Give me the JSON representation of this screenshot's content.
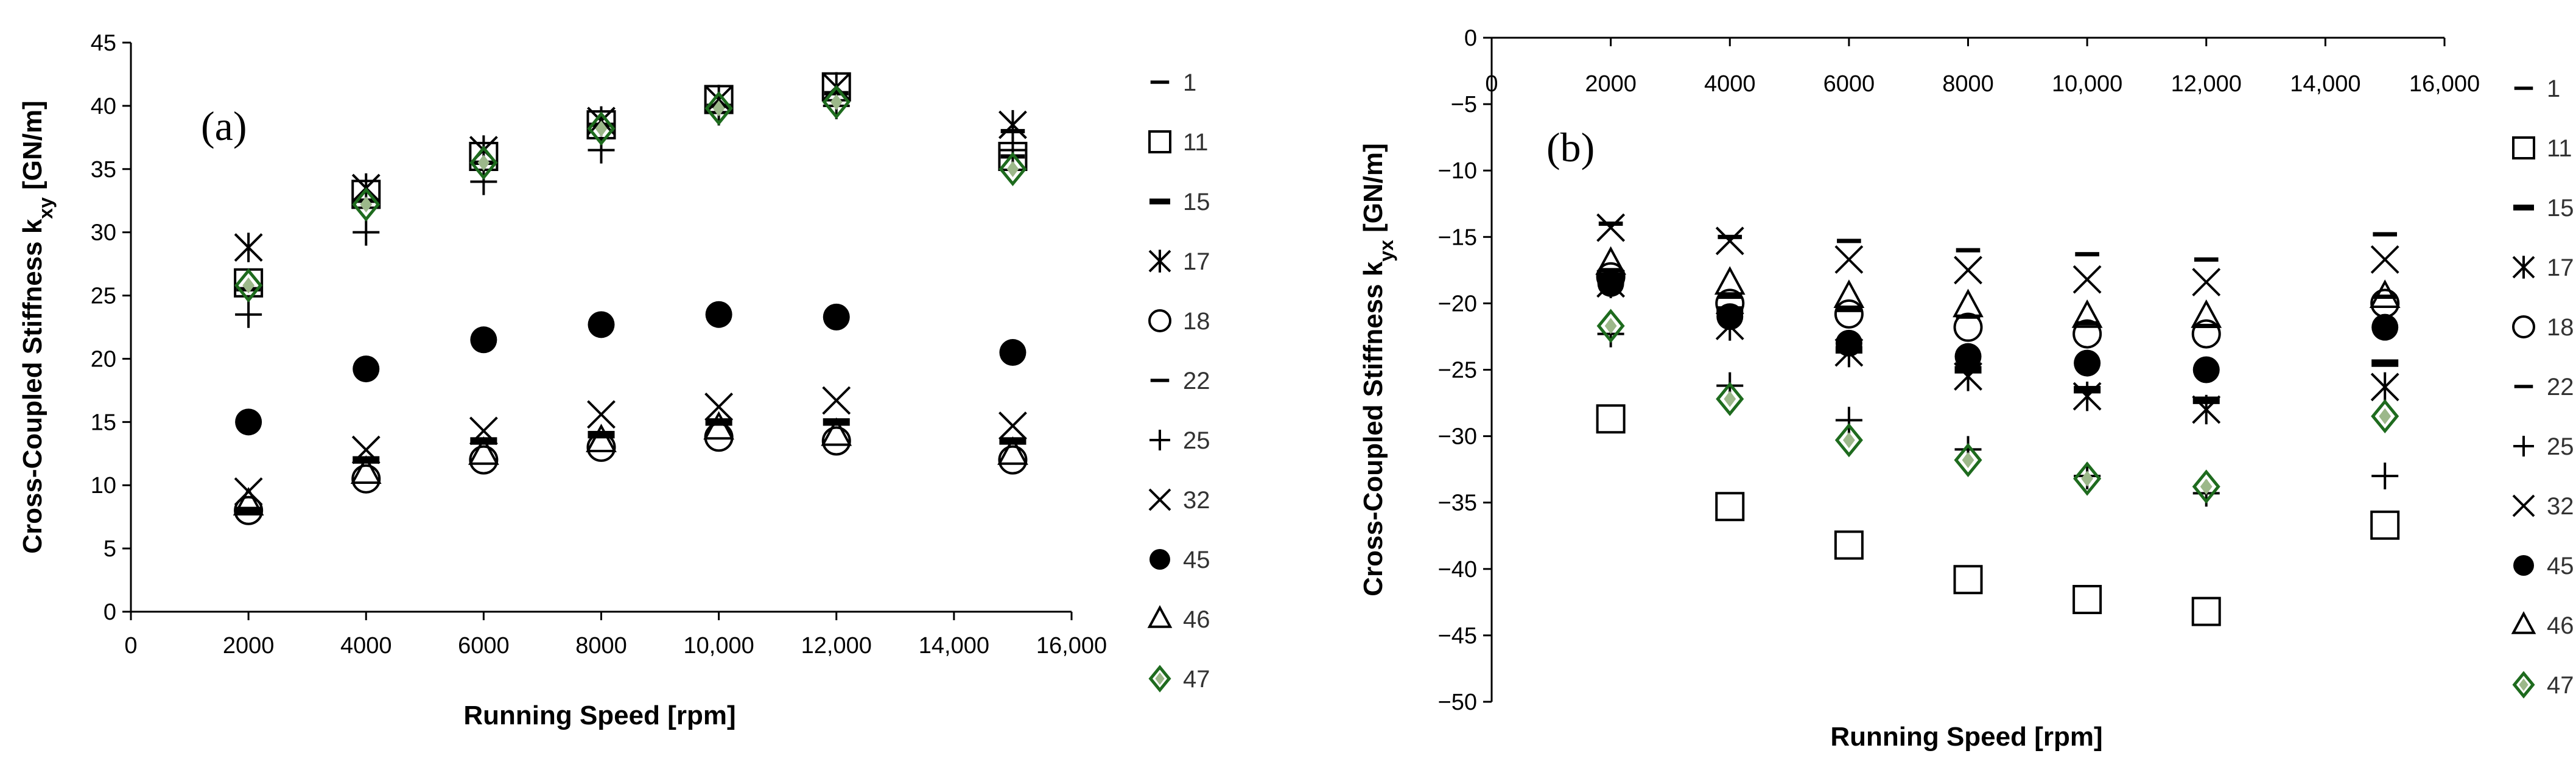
{
  "colors": {
    "axis": "#000000",
    "marker": "#000000",
    "accent_series_47": "#1e6b1e"
  },
  "legend_entries": [
    "1",
    "11",
    "15",
    "17",
    "18",
    "22",
    "25",
    "32",
    "45",
    "46",
    "47"
  ],
  "chart_data": [
    {
      "type": "scatter",
      "panel_label": "(a)",
      "xlabel": "Running Speed [rpm]",
      "ylabel_main": "Cross-Coupled Stiffness k",
      "ylabel_sub": "xy",
      "ylabel_unit": " [GN/m]",
      "xlim": [
        0,
        16000
      ],
      "ylim": [
        0,
        45
      ],
      "xticks": [
        0,
        2000,
        4000,
        6000,
        8000,
        10000,
        12000,
        14000,
        16000
      ],
      "xtick_labels": [
        "0",
        "2000",
        "4000",
        "6000",
        "8000",
        "10,000",
        "12,000",
        "14,000",
        "16,000"
      ],
      "yticks": [
        0,
        5,
        10,
        15,
        20,
        25,
        30,
        35,
        40,
        45
      ],
      "ytick_labels": [
        "0",
        "5",
        "10",
        "15",
        "20",
        "25",
        "30",
        "35",
        "40",
        "45"
      ],
      "legend_position": "right",
      "x": [
        2000,
        4000,
        6000,
        8000,
        10000,
        12000,
        15000
      ],
      "series": [
        {
          "name": "1",
          "marker": "dash",
          "values": [
            25.5,
            32.5,
            35.5,
            38.5,
            40.0,
            41.0,
            36.0
          ]
        },
        {
          "name": "11",
          "marker": "square",
          "values": [
            26.0,
            33.0,
            36.0,
            38.5,
            40.5,
            41.5,
            36.0
          ]
        },
        {
          "name": "15",
          "marker": "bar",
          "values": [
            8.0,
            12.0,
            13.5,
            14.0,
            15.0,
            15.0,
            13.5
          ]
        },
        {
          "name": "17",
          "marker": "star",
          "values": [
            28.8,
            33.5,
            36.5,
            38.8,
            40.5,
            41.5,
            38.5
          ]
        },
        {
          "name": "18",
          "marker": "circle",
          "values": [
            8.0,
            10.5,
            12.0,
            13.0,
            13.8,
            13.5,
            12.0
          ]
        },
        {
          "name": "22",
          "marker": "dash",
          "values": [
            25.5,
            32.5,
            35.5,
            38.5,
            40.0,
            41.0,
            38.0
          ]
        },
        {
          "name": "25",
          "marker": "plus",
          "values": [
            23.5,
            30.0,
            34.0,
            36.5,
            39.5,
            40.0,
            36.5
          ]
        },
        {
          "name": "32",
          "marker": "x",
          "values": [
            9.5,
            12.8,
            14.3,
            15.6,
            16.2,
            16.7,
            14.7
          ]
        },
        {
          "name": "45",
          "marker": "dot",
          "values": [
            15.0,
            19.2,
            21.5,
            22.7,
            23.5,
            23.3,
            20.5
          ]
        },
        {
          "name": "46",
          "marker": "triangle",
          "values": [
            8.5,
            11.0,
            12.5,
            13.5,
            14.5,
            14.0,
            12.5
          ]
        },
        {
          "name": "47",
          "marker": "diamond",
          "values": [
            25.8,
            32.2,
            35.5,
            38.2,
            39.8,
            40.3,
            35.0
          ]
        }
      ]
    },
    {
      "type": "scatter",
      "panel_label": "(b)",
      "xlabel": "Running Speed [rpm]",
      "ylabel_main": "Cross-Coupled Stiffness k",
      "ylabel_sub": "yx",
      "ylabel_unit": " [GN/m]",
      "xlim": [
        0,
        16000
      ],
      "ylim": [
        -50,
        0
      ],
      "xticks": [
        0,
        2000,
        4000,
        6000,
        8000,
        10000,
        12000,
        14000,
        16000
      ],
      "xtick_labels": [
        "0",
        "2000",
        "4000",
        "6000",
        "8000",
        "10,000",
        "12,000",
        "14,000",
        "16,000"
      ],
      "yticks": [
        0,
        -5,
        -10,
        -15,
        -20,
        -25,
        -30,
        -35,
        -40,
        -45,
        -50
      ],
      "ytick_labels": [
        "0",
        "−5",
        "−10",
        "−15",
        "−20",
        "−25",
        "−30",
        "−35",
        "−40",
        "−45",
        "−50"
      ],
      "legend_position": "right",
      "x": [
        2000,
        4000,
        6000,
        8000,
        10000,
        12000,
        15000
      ],
      "series": [
        {
          "name": "1",
          "marker": "dash",
          "values": [
            -17.5,
            -19.5,
            -20.5,
            -21.0,
            -21.5,
            -21.7,
            -19.5
          ]
        },
        {
          "name": "11",
          "marker": "square",
          "values": [
            -28.7,
            -35.3,
            -38.2,
            -40.8,
            -42.3,
            -43.2,
            -36.7
          ]
        },
        {
          "name": "15",
          "marker": "bar",
          "values": [
            -18.0,
            -20.5,
            -23.5,
            -25.0,
            -26.5,
            -27.3,
            -24.5
          ]
        },
        {
          "name": "17",
          "marker": "star",
          "values": [
            -18.5,
            -21.7,
            -23.7,
            -25.5,
            -27.0,
            -28.0,
            -26.3
          ]
        },
        {
          "name": "18",
          "marker": "circle",
          "values": [
            -18.0,
            -20.0,
            -20.8,
            -21.8,
            -22.3,
            -22.3,
            -20.0
          ]
        },
        {
          "name": "22",
          "marker": "dash",
          "values": [
            -14.0,
            -15.0,
            -15.3,
            -16.0,
            -16.3,
            -16.7,
            -14.8
          ]
        },
        {
          "name": "25",
          "marker": "plus",
          "values": [
            -22.3,
            -26.2,
            -28.8,
            -31.0,
            -33.0,
            -34.3,
            -33.0
          ]
        },
        {
          "name": "32",
          "marker": "x",
          "values": [
            -14.3,
            -15.3,
            -16.7,
            -17.5,
            -18.2,
            -18.4,
            -16.7
          ]
        },
        {
          "name": "45",
          "marker": "dot",
          "values": [
            -18.5,
            -21.0,
            -23.0,
            -24.0,
            -24.5,
            -25.0,
            -21.8
          ]
        },
        {
          "name": "46",
          "marker": "triangle",
          "values": [
            -17.0,
            -18.5,
            -19.5,
            -20.2,
            -21.0,
            -21.0,
            -19.5
          ]
        },
        {
          "name": "47",
          "marker": "diamond",
          "values": [
            -21.7,
            -27.2,
            -30.3,
            -31.8,
            -33.2,
            -33.8,
            -28.5
          ]
        }
      ]
    }
  ]
}
